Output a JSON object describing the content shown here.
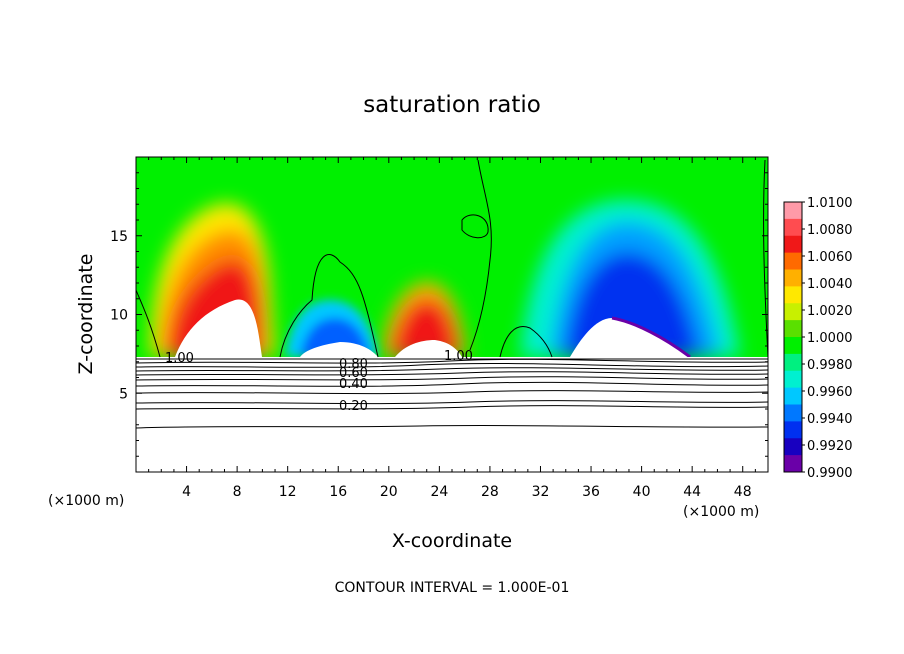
{
  "chart_data": {
    "type": "heatmap",
    "title": "saturation ratio",
    "xlabel": "X-coordinate",
    "ylabel": "Z-coordinate",
    "x_unit_left": "(×1000 m)",
    "x_unit_right": "(×1000 m)",
    "footer": "CONTOUR INTERVAL = 1.000E-01",
    "xlim": [
      0,
      50
    ],
    "ylim": [
      0,
      20
    ],
    "x_ticks": [
      "4",
      "8",
      "12",
      "16",
      "20",
      "24",
      "28",
      "32",
      "36",
      "40",
      "44",
      "48"
    ],
    "y_ticks": [
      "5",
      "10",
      "15"
    ],
    "colorbar": {
      "labels": [
        "1.0100",
        "1.0080",
        "1.0060",
        "1.0040",
        "1.0020",
        "1.0000",
        "0.9980",
        "0.9960",
        "0.9940",
        "0.9920",
        "0.9900"
      ],
      "colors": [
        "#ff9aa8",
        "#ff4c50",
        "#f01818",
        "#ff6a00",
        "#ffb000",
        "#ffe800",
        "#c8f000",
        "#5ae000",
        "#00f000",
        "#00f080",
        "#00f0d0",
        "#00c8ff",
        "#0078ff",
        "#0030f0",
        "#1800c0",
        "#6a00a8"
      ],
      "min": 0.99,
      "max": 1.01
    },
    "contour_labels": [
      "1.00",
      "1.00",
      "0.80",
      "0.60",
      "0.40",
      "0.20"
    ],
    "contour_levels": [
      0.2,
      0.4,
      0.6,
      0.8,
      1.0
    ],
    "colors": {
      "background": "#ffffff",
      "supersaturated_peak": "#e80000",
      "subsaturated_min": "#0000c8",
      "neutral": "#00f000"
    }
  }
}
